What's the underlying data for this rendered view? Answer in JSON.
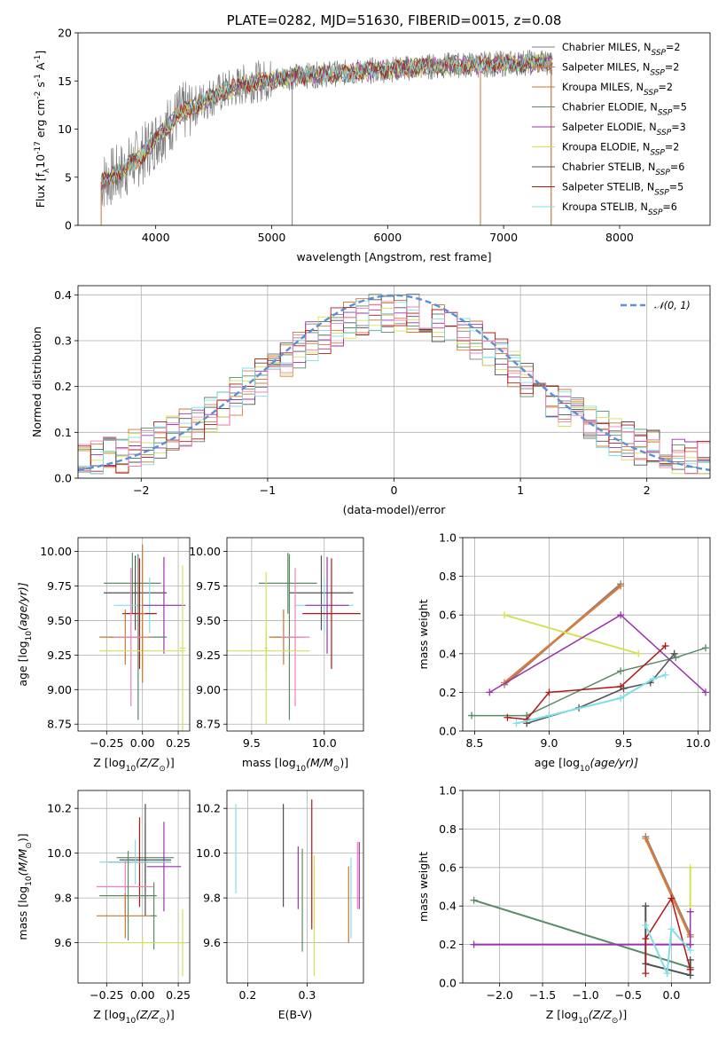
{
  "chart_data": [
    {
      "id": "spectrum",
      "type": "line",
      "title": "PLATE=0282, MJD=51630, FIBERID=0015, z=0.08",
      "xlabel": "wavelength [Angstrom, rest frame]",
      "ylabel_main": "Flux [f",
      "ylabel_sub": "λ",
      "ylabel_rest": "10",
      "ylabel_exp": "-17",
      "ylabel_units": " erg cm",
      "ylabel_exp2": "-2",
      "ylabel_s": " s",
      "ylabel_exp3": "-1",
      "ylabel_A": " A",
      "ylabel_exp4": "-1",
      "ylabel_end": "]",
      "xlim": [
        3330,
        8780
      ],
      "ylim": [
        0,
        20
      ],
      "xticks": [
        "4000",
        "5000",
        "6000",
        "7000",
        "8000"
      ],
      "xtick_values": [
        4000,
        5000,
        6000,
        7000,
        8000
      ],
      "yticks": [
        "0",
        "5",
        "10",
        "15",
        "20"
      ],
      "ytick_values": [
        0,
        5,
        10,
        15,
        20
      ],
      "grid": false,
      "legend_placement": "right",
      "data_start": 3530,
      "data_end": 7420,
      "continuum": [
        [
          3530,
          4.5
        ],
        [
          3700,
          5.5
        ],
        [
          3900,
          7.5
        ],
        [
          4000,
          9.0
        ],
        [
          4200,
          11.5
        ],
        [
          4500,
          13.5
        ],
        [
          4800,
          14.8
        ],
        [
          5200,
          15.5
        ],
        [
          5600,
          15.8
        ],
        [
          6000,
          16.2
        ],
        [
          6500,
          16.6
        ],
        [
          7000,
          16.8
        ],
        [
          7420,
          17.0
        ]
      ],
      "sky_spikes": [
        [
          5177,
          0
        ],
        [
          6800,
          0
        ],
        [
          7410,
          0
        ]
      ],
      "series": [
        {
          "name": "Chabrier MILES",
          "nssp": "2",
          "color": "#808080"
        },
        {
          "name": "Salpeter MILES",
          "nssp": "2",
          "color": "#d97b3c"
        },
        {
          "name": "Kroupa MILES",
          "nssp": "2",
          "color": "#c7772f"
        },
        {
          "name": "Chabrier ELODIE",
          "nssp": "5",
          "color": "#5a8a66"
        },
        {
          "name": "Salpeter ELODIE",
          "nssp": "3",
          "color": "#9933aa"
        },
        {
          "name": "Kroupa ELODIE",
          "nssp": "2",
          "color": "#d4e157"
        },
        {
          "name": "Chabrier STELIB",
          "nssp": "6",
          "color": "#505050"
        },
        {
          "name": "Salpeter STELIB",
          "nssp": "5",
          "color": "#b01818"
        },
        {
          "name": "Kroupa STELIB",
          "nssp": "6",
          "color": "#80dfe6"
        }
      ],
      "legend_nssp_prefix": "N",
      "legend_nssp_sub": "SSP"
    },
    {
      "id": "residuals",
      "type": "line",
      "xlabel": "(data-model)/error",
      "ylabel": "Normed distribution",
      "xlim": [
        -2.5,
        2.5
      ],
      "ylim": [
        0,
        0.42
      ],
      "xticks": [
        "−2",
        "−1",
        "0",
        "1",
        "2"
      ],
      "xtick_values": [
        -2,
        -1,
        0,
        1,
        2
      ],
      "yticks": [
        "0.0",
        "0.1",
        "0.2",
        "0.3",
        "0.4"
      ],
      "ytick_values": [
        0,
        0.1,
        0.2,
        0.3,
        0.4
      ],
      "grid": true,
      "legend_label": "𝒩(0, 1)",
      "legend_placement": "top-right",
      "gauss_color": "#5b8fd6",
      "bin_width": 0.1,
      "series_colors": [
        "#808080",
        "#d97b3c",
        "#c7772f",
        "#5a8a66",
        "#9933aa",
        "#d4e157",
        "#505050",
        "#b01818",
        "#80dfe6",
        "#f080b8"
      ]
    },
    {
      "id": "age-vs-z",
      "type": "scatter",
      "xlabel": "Z [log",
      "xlabel_sub": "10",
      "xlabel_rest": "(Z/Z",
      "xlabel_sun": "⊙",
      "xlabel_end": ")]",
      "ylabel": "age  [log",
      "ylabel_sub": "10",
      "ylabel_rest": "(age/yr)]",
      "xlim": [
        -0.45,
        0.33
      ],
      "ylim": [
        8.7,
        10.1
      ],
      "xticks": [
        "−0.25",
        "0.00",
        "0.25"
      ],
      "xtick_values": [
        -0.25,
        0,
        0.25
      ],
      "yticks": [
        "8.75",
        "9.00",
        "9.25",
        "9.50",
        "9.75",
        "10.00"
      ],
      "ytick_values": [
        8.75,
        9.0,
        9.25,
        9.5,
        9.75,
        10.0
      ],
      "grid": true,
      "points": [
        {
          "x": -0.07,
          "xerr": 0.2,
          "y": 9.77,
          "yerr": 0.22,
          "color": "#5a8a66"
        },
        {
          "x": -0.05,
          "xerr": 0.22,
          "y": 9.7,
          "yerr": 0.27,
          "color": "#505050"
        },
        {
          "x": 0.05,
          "xerr": 0.25,
          "y": 9.61,
          "yerr": 0.2,
          "color": "#80dfe6"
        },
        {
          "x": 0.15,
          "xerr": 0.15,
          "y": 9.61,
          "yerr": 0.35,
          "color": "#9933aa"
        },
        {
          "x": -0.02,
          "xerr": 0.12,
          "y": 9.55,
          "yerr": 0.4,
          "color": "#b01818"
        },
        {
          "x": -0.03,
          "xerr": 0.2,
          "y": 9.38,
          "yerr": 0.6,
          "color": "#5a8a66"
        },
        {
          "x": -0.12,
          "xerr": 0.18,
          "y": 9.38,
          "yerr": 0.2,
          "color": "#c7772f"
        },
        {
          "x": -0.08,
          "xerr": 0.12,
          "y": 9.38,
          "yerr": 0.5,
          "color": "#f080b8"
        },
        {
          "x": 0.0,
          "xerr": 0.3,
          "y": 9.28,
          "yerr": 0.15,
          "color": "#d4e157"
        },
        {
          "x": 0.28,
          "xerr": 0.02,
          "y": 9.3,
          "yerr": 0.6,
          "color": "#d4e157"
        },
        {
          "x": -0.0,
          "xerr": 0.02,
          "y": 9.55,
          "yerr": 0.5,
          "color": "#c7772f"
        }
      ]
    },
    {
      "id": "age-vs-mass",
      "type": "scatter",
      "xlabel": "mass [log",
      "xlabel_sub": "10",
      "xlabel_rest": "(M/M",
      "xlabel_sun": "⊙",
      "xlabel_end": ")]",
      "xlim": [
        9.33,
        10.27
      ],
      "ylim": [
        8.7,
        10.1
      ],
      "xticks": [
        "9.5",
        "10.0"
      ],
      "xtick_values": [
        9.5,
        10.0
      ],
      "yticks": [
        "8.75",
        "9.00",
        "9.25",
        "9.50",
        "9.75",
        "10.00"
      ],
      "ytick_values": [
        8.75,
        9.0,
        9.25,
        9.5,
        9.75,
        10.0
      ],
      "grid": true,
      "points": [
        {
          "x": 9.75,
          "xerr": 0.2,
          "y": 9.77,
          "yerr": 0.22,
          "color": "#5a8a66"
        },
        {
          "x": 9.98,
          "xerr": 0.22,
          "y": 9.7,
          "yerr": 0.27,
          "color": "#505050"
        },
        {
          "x": 10.0,
          "xerr": 0.2,
          "y": 9.61,
          "yerr": 0.2,
          "color": "#80dfe6"
        },
        {
          "x": 10.02,
          "xerr": 0.15,
          "y": 9.61,
          "yerr": 0.35,
          "color": "#9933aa"
        },
        {
          "x": 10.05,
          "xerr": 0.2,
          "y": 9.55,
          "yerr": 0.4,
          "color": "#b01818"
        },
        {
          "x": 9.76,
          "xerr": 0.1,
          "y": 9.38,
          "yerr": 0.6,
          "color": "#5a8a66"
        },
        {
          "x": 9.72,
          "xerr": 0.1,
          "y": 9.38,
          "yerr": 0.2,
          "color": "#c7772f"
        },
        {
          "x": 9.8,
          "xerr": 0.1,
          "y": 9.38,
          "yerr": 0.5,
          "color": "#f080b8"
        },
        {
          "x": 9.6,
          "xerr": 0.3,
          "y": 9.28,
          "yerr": 0.15,
          "color": "#d4e157"
        },
        {
          "x": 9.6,
          "xerr": 0.01,
          "y": 9.3,
          "yerr": 0.55,
          "color": "#d4e157"
        }
      ]
    },
    {
      "id": "massweight-vs-age",
      "type": "line",
      "xlabel": "age  [log",
      "xlabel_sub": "10",
      "xlabel_rest": "(age/yr)]",
      "ylabel": "mass weight",
      "xlim": [
        8.42,
        10.08
      ],
      "ylim": [
        0,
        1
      ],
      "xticks": [
        "8.5",
        "9.0",
        "9.5",
        "10.0"
      ],
      "xtick_values": [
        8.5,
        9.0,
        9.5,
        10.0
      ],
      "yticks": [
        "0.0",
        "0.2",
        "0.4",
        "0.6",
        "0.8",
        "1.0"
      ],
      "ytick_values": [
        0,
        0.2,
        0.4,
        0.6,
        0.8,
        1.0
      ],
      "grid": true,
      "series": [
        {
          "color": "#808080",
          "width": 2.5,
          "points": [
            [
              8.7,
              0.24
            ],
            [
              9.48,
              0.76
            ]
          ]
        },
        {
          "color": "#d97b3c",
          "width": 2.5,
          "points": [
            [
              8.7,
              0.25
            ],
            [
              9.48,
              0.75
            ]
          ]
        },
        {
          "color": "#d4e157",
          "width": 2,
          "points": [
            [
              8.7,
              0.6
            ],
            [
              9.6,
              0.4
            ]
          ]
        },
        {
          "color": "#9933aa",
          "width": 1.5,
          "points": [
            [
              8.6,
              0.2
            ],
            [
              9.48,
              0.6
            ],
            [
              10.05,
              0.2
            ]
          ]
        },
        {
          "color": "#5a8a66",
          "width": 1.5,
          "points": [
            [
              8.48,
              0.08
            ],
            [
              8.85,
              0.08
            ],
            [
              9.48,
              0.31
            ],
            [
              9.85,
              0.38
            ],
            [
              10.05,
              0.43
            ]
          ]
        },
        {
          "color": "#505050",
          "width": 1.5,
          "points": [
            [
              8.85,
              0.04
            ],
            [
              9.2,
              0.12
            ],
            [
              9.5,
              0.22
            ],
            [
              9.68,
              0.25
            ],
            [
              9.84,
              0.4
            ]
          ]
        },
        {
          "color": "#b01818",
          "width": 1.5,
          "points": [
            [
              8.72,
              0.07
            ],
            [
              8.85,
              0.06
            ],
            [
              9.0,
              0.2
            ],
            [
              9.48,
              0.23
            ],
            [
              9.78,
              0.44
            ]
          ]
        },
        {
          "color": "#80dfe6",
          "width": 2,
          "points": [
            [
              8.78,
              0.04
            ],
            [
              9.0,
              0.08
            ],
            [
              9.48,
              0.17
            ],
            [
              9.7,
              0.27
            ],
            [
              9.78,
              0.29
            ]
          ]
        }
      ]
    },
    {
      "id": "mass-vs-z",
      "type": "scatter",
      "xlabel": "Z [log",
      "xlabel_sub": "10",
      "xlabel_rest": "(Z/Z",
      "xlabel_sun": "⊙",
      "xlabel_end": ")]",
      "ylabel": "mass [log",
      "ylabel_sub": "10",
      "ylabel_rest": "(M/M",
      "ylabel_sun": "⊙",
      "ylabel_end": ")]",
      "xlim": [
        -0.45,
        0.33
      ],
      "ylim": [
        9.42,
        10.28
      ],
      "xticks": [
        "−0.25",
        "0.00",
        "0.25"
      ],
      "xtick_values": [
        -0.25,
        0,
        0.25
      ],
      "yticks": [
        "9.6",
        "9.8",
        "10.0",
        "10.2"
      ],
      "ytick_values": [
        9.6,
        9.8,
        10.0,
        10.2
      ],
      "grid": true,
      "points": [
        {
          "x": 0.02,
          "xerr": 0.2,
          "y": 9.98,
          "yerr": 0.15,
          "color": "#5a8a66"
        },
        {
          "x": 0.02,
          "xerr": 0.18,
          "y": 9.97,
          "yerr": 0.25,
          "color": "#505050"
        },
        {
          "x": -0.02,
          "xerr": 0.22,
          "y": 9.96,
          "yerr": 0.2,
          "color": "#b01818"
        },
        {
          "x": 0.15,
          "xerr": 0.12,
          "y": 9.94,
          "yerr": 0.2,
          "color": "#9933aa"
        },
        {
          "x": -0.05,
          "xerr": 0.25,
          "y": 9.96,
          "yerr": 0.1,
          "color": "#80dfe6"
        },
        {
          "x": -0.12,
          "xerr": 0.2,
          "y": 9.85,
          "yerr": 0.12,
          "color": "#f080b8"
        },
        {
          "x": -0.1,
          "xerr": 0.2,
          "y": 9.81,
          "yerr": 0.2,
          "color": "#5a8a66"
        },
        {
          "x": -0.12,
          "xerr": 0.2,
          "y": 9.72,
          "yerr": 0.1,
          "color": "#c7772f"
        },
        {
          "x": 0.08,
          "xerr": 0.02,
          "y": 9.72,
          "yerr": 0.15,
          "color": "#5a8a66"
        },
        {
          "x": 0.0,
          "xerr": 0.3,
          "y": 9.6,
          "yerr": 0.02,
          "color": "#d4e157"
        },
        {
          "x": 0.28,
          "xerr": 0.02,
          "y": 9.6,
          "yerr": 0.15,
          "color": "#d4e157"
        }
      ]
    },
    {
      "id": "mass-vs-ebv",
      "type": "scatter",
      "xlabel": "E(B-V)",
      "xlim": [
        0.165,
        0.395
      ],
      "ylim": [
        9.42,
        10.28
      ],
      "xticks": [
        "0.2",
        "0.3"
      ],
      "xtick_values": [
        0.2,
        0.3
      ],
      "yticks": [
        "9.6",
        "9.8",
        "10.0",
        "10.2"
      ],
      "ytick_values": [
        9.6,
        9.8,
        10.0,
        10.2
      ],
      "grid": true,
      "points": [
        {
          "x": 0.18,
          "y": 10.02,
          "yerr": 0.2,
          "color": "#80dfe6"
        },
        {
          "x": 0.26,
          "y": 9.99,
          "yerr": 0.23,
          "color": "#505050"
        },
        {
          "x": 0.285,
          "y": 9.89,
          "yerr": 0.14,
          "color": "#9933aa"
        },
        {
          "x": 0.292,
          "y": 9.79,
          "yerr": 0.23,
          "color": "#5a8a66"
        },
        {
          "x": 0.308,
          "y": 9.95,
          "yerr": 0.29,
          "color": "#b01818"
        },
        {
          "x": 0.312,
          "y": 9.72,
          "yerr": 0.27,
          "color": "#d4e157"
        },
        {
          "x": 0.37,
          "y": 9.77,
          "yerr": 0.17,
          "color": "#c7772f"
        },
        {
          "x": 0.374,
          "y": 9.8,
          "yerr": 0.18,
          "color": "#80dfe6"
        },
        {
          "x": 0.385,
          "y": 9.9,
          "yerr": 0.15,
          "color": "#f080b8"
        },
        {
          "x": 0.388,
          "y": 9.9,
          "yerr": 0.15,
          "color": "#9933aa"
        }
      ]
    },
    {
      "id": "massweight-vs-z",
      "type": "line",
      "xlabel": "Z [log",
      "xlabel_sub": "10",
      "xlabel_rest": "(Z/Z",
      "xlabel_sun": "⊙",
      "xlabel_end": ")]",
      "ylabel": "mass weight",
      "xlim": [
        -2.43,
        0.45
      ],
      "ylim": [
        0,
        1
      ],
      "xticks": [
        "−2.0",
        "−1.5",
        "−1.0",
        "−0.5",
        "0.0"
      ],
      "xtick_values": [
        -2.0,
        -1.5,
        -1.0,
        -0.5,
        0.0
      ],
      "yticks": [
        "0.0",
        "0.2",
        "0.4",
        "0.6",
        "0.8",
        "1.0"
      ],
      "ytick_values": [
        0,
        0.2,
        0.4,
        0.6,
        0.8,
        1.0
      ],
      "grid": true,
      "series": [
        {
          "color": "#808080",
          "width": 2.5,
          "points": [
            [
              -0.3,
              0.76
            ],
            [
              0.22,
              0.25
            ]
          ]
        },
        {
          "color": "#d97b3c",
          "width": 2.5,
          "points": [
            [
              -0.3,
              0.75
            ],
            [
              0.22,
              0.24
            ]
          ]
        },
        {
          "color": "#5a8a66",
          "width": 2,
          "points": [
            [
              -2.3,
              0.43
            ],
            [
              0.22,
              0.08
            ]
          ]
        },
        {
          "color": "#9933aa",
          "width": 2,
          "points": [
            [
              -2.3,
              0.2
            ],
            [
              0.22,
              0.2
            ]
          ]
        },
        {
          "color": "#d4e157",
          "width": 2,
          "points": [
            [
              0.22,
              0.6
            ],
            [
              0.22,
              0.4
            ]
          ]
        },
        {
          "color": "#505050",
          "width": 2,
          "points": [
            [
              -0.3,
              0.4
            ],
            [
              -0.3,
              0.1
            ],
            [
              0.22,
              0.04
            ],
            [
              0.22,
              0.12
            ]
          ]
        },
        {
          "color": "#b01818",
          "width": 1.5,
          "points": [
            [
              -0.3,
              0.05
            ],
            [
              -0.3,
              0.23
            ],
            [
              0.0,
              0.44
            ],
            [
              0.22,
              0.07
            ]
          ]
        },
        {
          "color": "#80dfe6",
          "width": 2,
          "points": [
            [
              -0.3,
              0.3
            ],
            [
              -0.05,
              0.05
            ],
            [
              0.0,
              0.28
            ],
            [
              0.22,
              0.17
            ]
          ]
        },
        {
          "color": "#9933aa",
          "width": 1.5,
          "points": [
            [
              0.22,
              0.37
            ],
            [
              0.22,
              0.2
            ]
          ]
        }
      ]
    }
  ]
}
